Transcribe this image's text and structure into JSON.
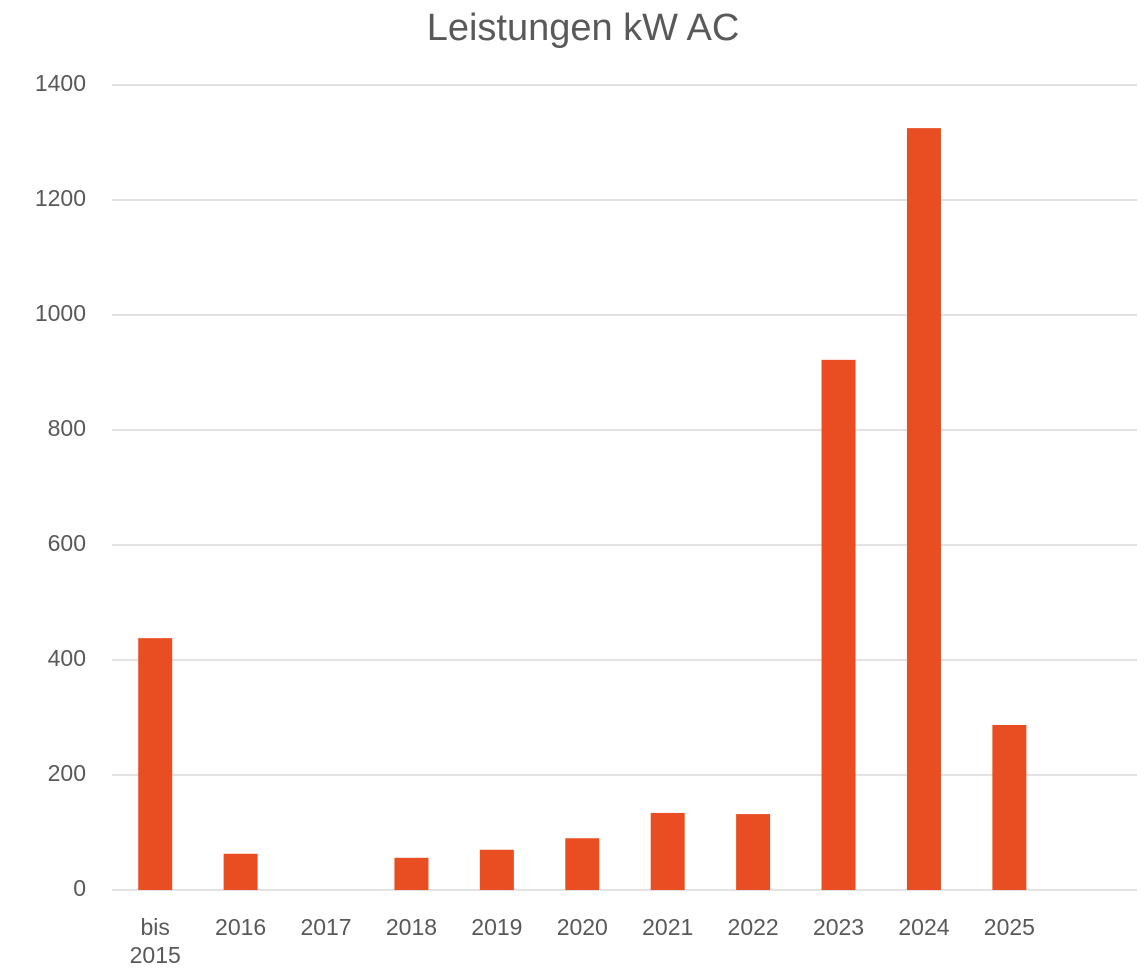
{
  "chart_data": {
    "type": "bar",
    "title": "Leistungen kW AC",
    "categories": [
      "bis 2015",
      "2016",
      "2017",
      "2018",
      "2019",
      "2020",
      "2021",
      "2022",
      "2023",
      "2024",
      "2025",
      null
    ],
    "values": [
      438,
      63,
      0,
      56,
      70,
      90,
      134,
      132,
      922,
      1325,
      287,
      null
    ],
    "color": "#e84e22",
    "ylim": [
      0,
      1400
    ],
    "yticks": [
      0,
      200,
      400,
      600,
      800,
      1000,
      1200,
      1400
    ],
    "grid": true
  }
}
